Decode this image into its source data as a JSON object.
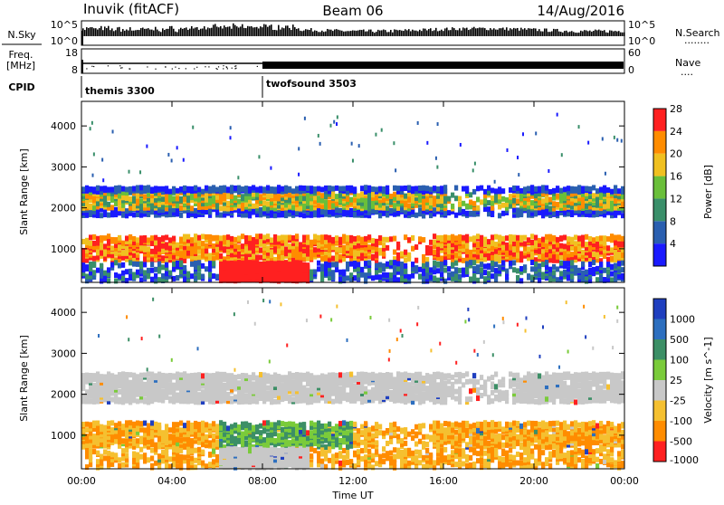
{
  "header": {
    "station": "Inuvik (fitACF)",
    "beam": "Beam 06",
    "date": "14/Aug/2016"
  },
  "nsky_panel": {
    "left_label": "N.Sky",
    "right_label": "N.Search",
    "right_dots": "········",
    "ticks": [
      "10^5",
      "10^0"
    ],
    "right_ticks": [
      "10^5",
      "10^0"
    ]
  },
  "freq_panel": {
    "left_label_1": "Freq.",
    "left_label_2": "[MHz]",
    "right_label": "Nave",
    "right_dots": "····",
    "ticks": [
      "18",
      "8"
    ],
    "right_ticks": [
      "60",
      "0"
    ]
  },
  "cpid": {
    "label": "CPID",
    "modes": [
      {
        "name": "themis 3300",
        "start_hour": 0
      },
      {
        "name": "twofsound 3503",
        "start_hour": 8
      }
    ]
  },
  "chart_data": [
    {
      "type": "heatmap",
      "name": "Power",
      "ylabel": "Slant Range [km]",
      "ylim": [
        180,
        4600
      ],
      "yticks": [
        "1000",
        "2000",
        "3000",
        "4000"
      ],
      "colorbar_label": "Power [dB]",
      "colorbar_ticks": [
        "4",
        "8",
        "12",
        "16",
        "20",
        "24",
        "28"
      ],
      "colorbar_colors": [
        "#1a1aff",
        "#2a5fb0",
        "#3a8f6a",
        "#6abf3a",
        "#f0c020",
        "#ff8c00",
        "#ff2020"
      ],
      "bands": [
        {
          "range_km": [
            1800,
            2500
          ],
          "dominant": "12-20 dB"
        },
        {
          "range_km": [
            700,
            1300
          ],
          "dominant": "20-28 dB"
        },
        {
          "range_km": [
            200,
            600
          ],
          "dominant": "24-28 dB",
          "hours": [
            6,
            10
          ]
        }
      ]
    },
    {
      "type": "heatmap",
      "name": "Velocity",
      "ylabel": "Slant Range [km]",
      "ylim": [
        180,
        4600
      ],
      "yticks": [
        "1000",
        "2000",
        "3000",
        "4000"
      ],
      "colorbar_label": "Velocity [m s^-1]",
      "colorbar_ticks": [
        "1000",
        "500",
        "100",
        "25",
        "-25",
        "-100",
        "-500",
        "-1000"
      ],
      "colorbar_colors": [
        "#1f3fbf",
        "#2d6fbf",
        "#3c8f66",
        "#7acb3a",
        "#c8c8c8",
        "#f5c030",
        "#ff8c00",
        "#ff2020"
      ],
      "bands": [
        {
          "range_km": [
            1800,
            2600
          ],
          "dominant": "-25 to 25 m/s"
        },
        {
          "range_km": [
            700,
            1300
          ],
          "dominant": "-100 to -500 m/s"
        },
        {
          "range_km": [
            400,
            1100
          ],
          "dominant": "100 to 500 m/s",
          "hours": [
            6,
            12
          ]
        }
      ]
    }
  ],
  "xaxis": {
    "label": "Time UT",
    "ticks": [
      "00:00",
      "04:00",
      "08:00",
      "12:00",
      "16:00",
      "20:00",
      "00:00"
    ]
  }
}
